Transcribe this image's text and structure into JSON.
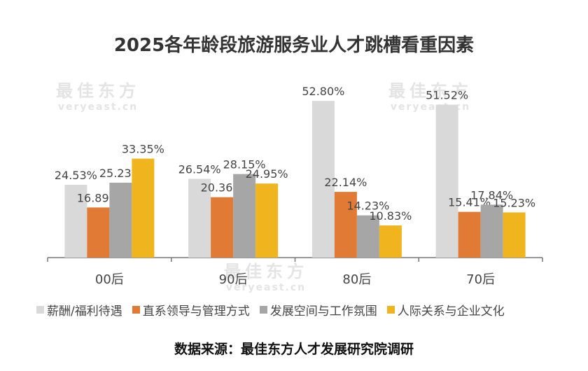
{
  "chart_data": {
    "type": "bar",
    "title": "2025各年龄段旅游服务业人才跳槽看重因素",
    "categories": [
      "00后",
      "90后",
      "80后",
      "70后"
    ],
    "series": [
      {
        "name": "薪酬/福利待遇",
        "color": "#d9d9d9",
        "values": [
          24.53,
          26.54,
          52.8,
          51.52
        ]
      },
      {
        "name": "直系领导与管理方式",
        "color": "#e07a34",
        "values": [
          16.89,
          20.36,
          22.14,
          15.41
        ]
      },
      {
        "name": "发展空间与工作氛围",
        "color": "#a6a6a6",
        "values": [
          25.23,
          28.15,
          14.23,
          17.84
        ]
      },
      {
        "name": "人际关系与企业文化",
        "color": "#f0b51e",
        "values": [
          33.35,
          24.95,
          10.83,
          15.23
        ]
      }
    ],
    "value_format": "%.2f%",
    "ylim": [
      0,
      60
    ],
    "grid": false,
    "legend_placement": "bottom"
  },
  "source": "数据来源：最佳东方人才发展研究院调研",
  "watermark": {
    "name": "最佳东方",
    "url": "veryeast.cn"
  }
}
